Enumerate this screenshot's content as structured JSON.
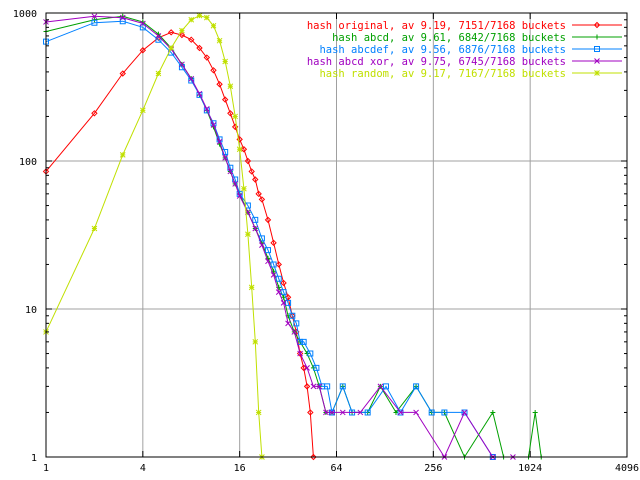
{
  "chart_data": {
    "type": "line",
    "title": "",
    "xlabel": "",
    "ylabel": "",
    "xscale": "log2",
    "yscale": "log10",
    "xlim": [
      1,
      4096
    ],
    "ylim": [
      1,
      1000
    ],
    "x_ticks": [
      1,
      4,
      16,
      64,
      256,
      1024,
      4096
    ],
    "x_tick_labels": [
      "1",
      "4",
      "16",
      "64",
      "256",
      "1024",
      "4096"
    ],
    "y_ticks": [
      1,
      10,
      100,
      1000
    ],
    "y_tick_labels": [
      "1",
      "10",
      "100",
      "1000"
    ],
    "grid": true,
    "legend_position": "top-right",
    "series": [
      {
        "name": "hash original, av 9.19, 7151/7168 buckets",
        "color": "#ff0000",
        "marker": "diamond",
        "points": [
          [
            1,
            85
          ],
          [
            2,
            210
          ],
          [
            3,
            390
          ],
          [
            4,
            560
          ],
          [
            5,
            680
          ],
          [
            6,
            740
          ],
          [
            7,
            710
          ],
          [
            8,
            660
          ],
          [
            9,
            580
          ],
          [
            10,
            500
          ],
          [
            11,
            410
          ],
          [
            12,
            330
          ],
          [
            13,
            260
          ],
          [
            14,
            210
          ],
          [
            15,
            170
          ],
          [
            16,
            140
          ],
          [
            17,
            120
          ],
          [
            18,
            100
          ],
          [
            19,
            85
          ],
          [
            20,
            75
          ],
          [
            21,
            60
          ],
          [
            22,
            55
          ],
          [
            24,
            40
          ],
          [
            26,
            28
          ],
          [
            28,
            20
          ],
          [
            30,
            15
          ],
          [
            32,
            12
          ],
          [
            34,
            9
          ],
          [
            36,
            7
          ],
          [
            38,
            5
          ],
          [
            40,
            4
          ],
          [
            42,
            3
          ],
          [
            44,
            2
          ],
          [
            46,
            1
          ]
        ]
      },
      {
        "name": "hash abcd, av 9.61, 6842/7168 buckets",
        "color": "#00a000",
        "marker": "plus",
        "points": [
          [
            1,
            750
          ],
          [
            2,
            900
          ],
          [
            3,
            950
          ],
          [
            4,
            870
          ],
          [
            5,
            720
          ],
          [
            6,
            580
          ],
          [
            7,
            450
          ],
          [
            8,
            360
          ],
          [
            9,
            280
          ],
          [
            10,
            220
          ],
          [
            11,
            170
          ],
          [
            12,
            130
          ],
          [
            13,
            105
          ],
          [
            14,
            85
          ],
          [
            15,
            70
          ],
          [
            16,
            60
          ],
          [
            18,
            45
          ],
          [
            20,
            35
          ],
          [
            22,
            28
          ],
          [
            24,
            22
          ],
          [
            26,
            18
          ],
          [
            28,
            14
          ],
          [
            30,
            12
          ],
          [
            32,
            9
          ],
          [
            35,
            7
          ],
          [
            38,
            6
          ],
          [
            42,
            5
          ],
          [
            46,
            4
          ],
          [
            50,
            3
          ],
          [
            55,
            2
          ],
          [
            60,
            2
          ],
          [
            70,
            3
          ],
          [
            80,
            2
          ],
          [
            100,
            2
          ],
          [
            120,
            3
          ],
          [
            150,
            2
          ],
          [
            200,
            3
          ],
          [
            250,
            2
          ],
          [
            300,
            2
          ],
          [
            400,
            1
          ],
          [
            600,
            2
          ],
          [
            700,
            1
          ],
          [
            1000,
            1
          ],
          [
            1100,
            2
          ],
          [
            1200,
            1
          ]
        ]
      },
      {
        "name": "hash abcdef, av 9.56, 6876/7168 buckets",
        "color": "#0080ff",
        "marker": "square",
        "points": [
          [
            1,
            640
          ],
          [
            2,
            860
          ],
          [
            3,
            880
          ],
          [
            4,
            800
          ],
          [
            5,
            660
          ],
          [
            6,
            540
          ],
          [
            7,
            430
          ],
          [
            8,
            350
          ],
          [
            9,
            280
          ],
          [
            10,
            220
          ],
          [
            11,
            180
          ],
          [
            12,
            140
          ],
          [
            13,
            115
          ],
          [
            14,
            90
          ],
          [
            15,
            75
          ],
          [
            16,
            60
          ],
          [
            18,
            50
          ],
          [
            20,
            40
          ],
          [
            22,
            30
          ],
          [
            24,
            25
          ],
          [
            26,
            20
          ],
          [
            28,
            16
          ],
          [
            30,
            13
          ],
          [
            32,
            11
          ],
          [
            34,
            9
          ],
          [
            36,
            8
          ],
          [
            38,
            6
          ],
          [
            40,
            6
          ],
          [
            44,
            5
          ],
          [
            48,
            4
          ],
          [
            52,
            3
          ],
          [
            56,
            3
          ],
          [
            60,
            2
          ],
          [
            70,
            3
          ],
          [
            80,
            2
          ],
          [
            100,
            2
          ],
          [
            130,
            3
          ],
          [
            160,
            2
          ],
          [
            200,
            3
          ],
          [
            250,
            2
          ],
          [
            300,
            2
          ],
          [
            400,
            2
          ],
          [
            600,
            1
          ]
        ]
      },
      {
        "name": "hash abcd xor, av 9.75, 6745/7168 buckets",
        "color": "#a000c0",
        "marker": "cross",
        "points": [
          [
            1,
            870
          ],
          [
            2,
            950
          ],
          [
            3,
            930
          ],
          [
            4,
            850
          ],
          [
            5,
            700
          ],
          [
            6,
            570
          ],
          [
            7,
            450
          ],
          [
            8,
            360
          ],
          [
            9,
            285
          ],
          [
            10,
            225
          ],
          [
            11,
            175
          ],
          [
            12,
            135
          ],
          [
            13,
            105
          ],
          [
            14,
            85
          ],
          [
            15,
            70
          ],
          [
            16,
            58
          ],
          [
            18,
            45
          ],
          [
            20,
            35
          ],
          [
            22,
            27
          ],
          [
            24,
            21
          ],
          [
            26,
            17
          ],
          [
            28,
            13
          ],
          [
            30,
            11
          ],
          [
            32,
            8
          ],
          [
            35,
            7
          ],
          [
            38,
            5
          ],
          [
            42,
            4
          ],
          [
            46,
            3
          ],
          [
            50,
            3
          ],
          [
            55,
            2
          ],
          [
            60,
            2
          ],
          [
            70,
            2
          ],
          [
            90,
            2
          ],
          [
            120,
            3
          ],
          [
            160,
            2
          ],
          [
            200,
            2
          ],
          [
            300,
            1
          ],
          [
            400,
            2
          ],
          [
            600,
            1
          ],
          [
            800,
            1
          ]
        ]
      },
      {
        "name": "hash random, av 9.17, 7167/7168 buckets",
        "color": "#c0e000",
        "marker": "star",
        "points": [
          [
            1,
            7
          ],
          [
            2,
            35
          ],
          [
            3,
            110
          ],
          [
            4,
            220
          ],
          [
            5,
            390
          ],
          [
            6,
            580
          ],
          [
            7,
            760
          ],
          [
            8,
            900
          ],
          [
            9,
            960
          ],
          [
            10,
            930
          ],
          [
            11,
            820
          ],
          [
            12,
            650
          ],
          [
            13,
            470
          ],
          [
            14,
            320
          ],
          [
            15,
            200
          ],
          [
            16,
            120
          ],
          [
            17,
            65
          ],
          [
            18,
            32
          ],
          [
            19,
            14
          ],
          [
            20,
            6
          ],
          [
            21,
            2
          ],
          [
            22,
            1
          ]
        ]
      }
    ]
  }
}
